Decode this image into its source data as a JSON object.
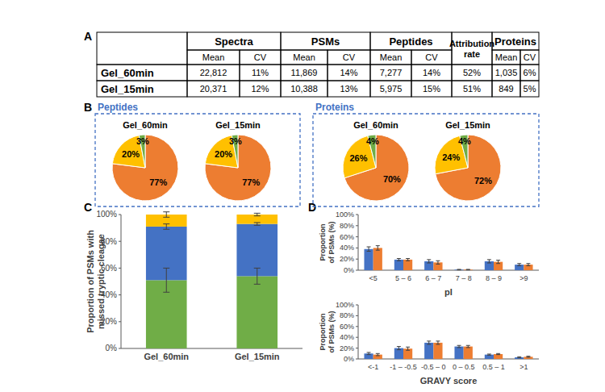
{
  "panel_labels": [
    "A",
    "B",
    "C",
    "D"
  ],
  "table": {
    "columns": [
      {
        "label": "Spectra",
        "sub": [
          "Mean",
          "CV"
        ]
      },
      {
        "label": "PSMs",
        "sub": [
          "Mean",
          "CV"
        ]
      },
      {
        "label": "Peptides",
        "sub": [
          "Mean",
          "CV"
        ]
      },
      {
        "label": "Attribution rate"
      },
      {
        "label": "Proteins",
        "sub": [
          "Mean",
          "CV"
        ]
      }
    ],
    "rows": [
      {
        "label": "Gel_60min",
        "cells": [
          "22,812",
          "11%",
          "11,869",
          "14%",
          "7,277",
          "14%",
          "52%",
          "1,035",
          "6%"
        ]
      },
      {
        "label": "Gel_15min",
        "cells": [
          "20,371",
          "12%",
          "10,388",
          "13%",
          "5,975",
          "15%",
          "51%",
          "849",
          "5%"
        ]
      }
    ]
  },
  "pie_groups": [
    "Peptides",
    "Proteins"
  ],
  "chart_data": [
    {
      "type": "pie",
      "title": "Gel_60min",
      "values": [
        77,
        20,
        3
      ],
      "value_labels": [
        "77%",
        "20%",
        "3%"
      ],
      "colors": [
        "#ED7D31",
        "#FFC000",
        "#70AD47"
      ],
      "data_labels": true
    },
    {
      "type": "pie",
      "title": "Gel_15min",
      "values": [
        77,
        20,
        3
      ],
      "value_labels": [
        "77%",
        "20%",
        "3%"
      ],
      "colors": [
        "#ED7D31",
        "#FFC000",
        "#70AD47"
      ],
      "data_labels": true
    },
    {
      "type": "pie",
      "title": "Gel_60min",
      "values": [
        70,
        26,
        4
      ],
      "value_labels": [
        "70%",
        "26%",
        "4%"
      ],
      "colors": [
        "#ED7D31",
        "#FFC000",
        "#70AD47"
      ],
      "data_labels": true
    },
    {
      "type": "pie",
      "title": "Gel_15min",
      "values": [
        72,
        24,
        4
      ],
      "value_labels": [
        "72%",
        "24%",
        "4%"
      ],
      "colors": [
        "#ED7D31",
        "#FFC000",
        "#70AD47"
      ],
      "data_labels": true
    },
    {
      "type": "bar",
      "stacked": true,
      "grid": false,
      "ylabel": "Proportion of PSMs with missed tryptic cleagae",
      "categories": [
        "Gel_60min",
        "Gel_15min"
      ],
      "series": [
        {
          "color": "#70AD47",
          "values": [
            51,
            54
          ],
          "errors": [
            9,
            6
          ]
        },
        {
          "color": "#4472C4",
          "values": [
            40,
            39
          ],
          "errors": [
            2,
            1
          ]
        },
        {
          "color": "#FFC000",
          "values": [
            9,
            7
          ],
          "errors": [
            2,
            1
          ]
        }
      ],
      "ylim": [
        0,
        100
      ],
      "yticks": [
        {
          "value": 0,
          "label": "0%"
        },
        {
          "value": 20,
          "label": "20%"
        },
        {
          "value": 40,
          "label": "40%"
        },
        {
          "value": 60,
          "label": "60%"
        },
        {
          "value": 80,
          "label": "80%"
        },
        {
          "value": 100,
          "label": "100%"
        }
      ]
    },
    {
      "type": "bar",
      "grid": false,
      "ylabel": "Proportion of PSMs (%)",
      "xlabel": "pI",
      "categories": [
        "<5",
        "5 – 6",
        "6 – 7",
        "7 – 8",
        "8 – 9",
        ">9"
      ],
      "series": [
        {
          "color": "#4472C4",
          "values": [
            38,
            19,
            16,
            1,
            16,
            10
          ],
          "errors": [
            4,
            2,
            3,
            0.5,
            3,
            2
          ]
        },
        {
          "color": "#ED7D31",
          "values": [
            40,
            19,
            14,
            1,
            15,
            10
          ],
          "errors": [
            4,
            2,
            3,
            0.5,
            3,
            2
          ]
        }
      ],
      "ylim": [
        0,
        100
      ],
      "yticks": [
        {
          "value": 0,
          "label": "0%"
        },
        {
          "value": 20,
          "label": "20%"
        },
        {
          "value": 40,
          "label": "40%"
        },
        {
          "value": 60,
          "label": "60%"
        },
        {
          "value": 80,
          "label": "80%"
        },
        {
          "value": 100,
          "label": "100%"
        }
      ]
    },
    {
      "type": "bar",
      "grid": false,
      "ylabel": "Proportion of PSMs (%)",
      "xlabel": "GRAVY score",
      "categories": [
        "<-1",
        "-1 – -0.5",
        "-0.5 – 0",
        "0 – 0.5",
        "0.5 – 1",
        ">1"
      ],
      "series": [
        {
          "color": "#4472C4",
          "values": [
            10,
            20,
            30,
            23,
            8,
            3
          ],
          "errors": [
            2,
            3,
            3,
            2,
            1,
            1
          ]
        },
        {
          "color": "#ED7D31",
          "values": [
            8,
            19,
            30,
            23,
            9,
            4
          ],
          "errors": [
            2,
            3,
            3,
            2,
            1,
            1
          ]
        }
      ],
      "ylim": [
        0,
        100
      ],
      "yticks": [
        {
          "value": 0,
          "label": "0%"
        },
        {
          "value": 20,
          "label": "20%"
        },
        {
          "value": 40,
          "label": "40%"
        },
        {
          "value": 60,
          "label": "60%"
        },
        {
          "value": 80,
          "label": "80%"
        },
        {
          "value": 100,
          "label": "100%"
        }
      ]
    }
  ]
}
